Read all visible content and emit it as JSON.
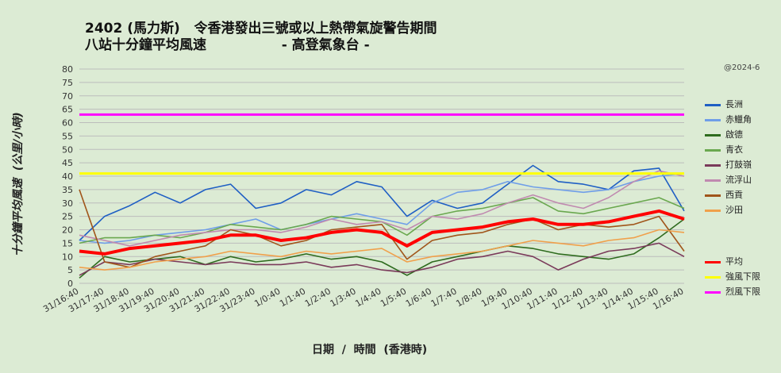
{
  "title_line1": "2402 (馬力斯)   令香港發出三號或以上熱帶氣旋警告期間",
  "title_line2": "八站十分鐘平均風速                - 高登氣象台 -",
  "credit": "@2024-6",
  "chart_data": {
    "type": "line",
    "xlabel": "日期  /  時間  (香港時)",
    "ylabel": "十分鐘平均風速  (公里/小時)",
    "ylim": [
      0,
      80
    ],
    "ytick_step": 5,
    "grid": true,
    "legend_position": "right",
    "x": [
      "31/16:40",
      "31/17:40",
      "31/18:40",
      "31/19:40",
      "31/20:40",
      "31/21:40",
      "31/22:40",
      "31/23:40",
      "1/0:40",
      "1/1:40",
      "1/2:40",
      "1/3:40",
      "1/4:40",
      "1/5:40",
      "1/6:40",
      "1/7:40",
      "1/8:40",
      "1/9:40",
      "1/10:40",
      "1/11:40",
      "1/12:40",
      "1/13:40",
      "1/14:40",
      "1/15:40",
      "1/16:40"
    ],
    "series": [
      {
        "name": "長洲",
        "color": "#1f5fc4",
        "width": 1.6,
        "values": [
          16,
          25,
          29,
          34,
          30,
          35,
          37,
          28,
          30,
          35,
          33,
          38,
          36,
          25,
          31,
          28,
          30,
          37,
          44,
          38,
          37,
          35,
          42,
          43,
          27
        ]
      },
      {
        "name": "赤鱲角",
        "color": "#6f9ee8",
        "width": 1.6,
        "values": [
          16,
          15,
          16,
          18,
          19,
          20,
          22,
          24,
          20,
          22,
          24,
          26,
          24,
          22,
          30,
          34,
          35,
          38,
          36,
          35,
          34,
          35,
          38,
          40,
          41
        ]
      },
      {
        "name": "啟德",
        "color": "#2e6b1e",
        "width": 1.6,
        "values": [
          2,
          10,
          8,
          9,
          10,
          7,
          10,
          8,
          9,
          11,
          9,
          10,
          8,
          3,
          8,
          10,
          12,
          14,
          13,
          11,
          10,
          9,
          11,
          17,
          24
        ]
      },
      {
        "name": "青衣",
        "color": "#6aa84f",
        "width": 1.6,
        "values": [
          15,
          17,
          17,
          18,
          17,
          19,
          22,
          21,
          20,
          22,
          25,
          24,
          23,
          18,
          25,
          27,
          28,
          30,
          32,
          27,
          26,
          28,
          30,
          32,
          28
        ]
      },
      {
        "name": "打鼓嶺",
        "color": "#7a3a5a",
        "width": 1.6,
        "values": [
          3,
          8,
          7,
          9,
          8,
          7,
          8,
          7,
          7,
          8,
          6,
          7,
          5,
          4,
          6,
          9,
          10,
          12,
          10,
          5,
          9,
          12,
          13,
          15,
          10
        ]
      },
      {
        "name": "流浮山",
        "color": "#c08ab0",
        "width": 1.6,
        "values": [
          18,
          16,
          14,
          16,
          18,
          19,
          20,
          20,
          19,
          21,
          24,
          22,
          23,
          20,
          25,
          24,
          26,
          30,
          33,
          30,
          28,
          32,
          38,
          42,
          40
        ]
      },
      {
        "name": "西貢",
        "color": "#a0551a",
        "width": 1.6,
        "values": [
          35,
          8,
          6,
          10,
          12,
          14,
          20,
          18,
          14,
          16,
          20,
          21,
          22,
          9,
          16,
          18,
          19,
          22,
          24,
          20,
          22,
          21,
          22,
          25,
          12
        ]
      },
      {
        "name": "沙田",
        "color": "#f0a04b",
        "width": 1.6,
        "values": [
          6,
          5,
          6,
          8,
          9,
          10,
          12,
          11,
          10,
          12,
          11,
          12,
          13,
          8,
          10,
          11,
          12,
          14,
          16,
          15,
          14,
          16,
          17,
          20,
          19
        ]
      },
      {
        "name": "平均",
        "color": "#ff0000",
        "width": 4,
        "values": [
          12,
          11,
          13,
          14,
          15,
          16,
          18,
          18,
          16,
          17,
          19,
          20,
          19,
          14,
          19,
          20,
          21,
          23,
          24,
          22,
          22,
          23,
          25,
          27,
          24
        ]
      },
      {
        "name": "強風下限",
        "color": "#ffff00",
        "width": 3,
        "values": [
          41,
          41,
          41,
          41,
          41,
          41,
          41,
          41,
          41,
          41,
          41,
          41,
          41,
          41,
          41,
          41,
          41,
          41,
          41,
          41,
          41,
          41,
          41,
          41,
          41
        ]
      },
      {
        "name": "烈風下限",
        "color": "#ff00ff",
        "width": 3,
        "values": [
          63,
          63,
          63,
          63,
          63,
          63,
          63,
          63,
          63,
          63,
          63,
          63,
          63,
          63,
          63,
          63,
          63,
          63,
          63,
          63,
          63,
          63,
          63,
          63,
          63
        ]
      }
    ]
  }
}
